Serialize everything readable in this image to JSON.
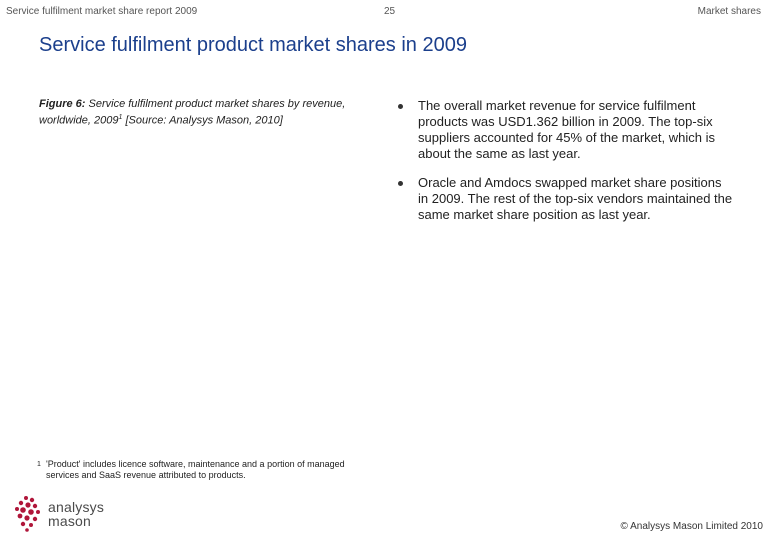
{
  "header": {
    "left": "Service fulfilment market share report 2009",
    "page_number": "25",
    "right": "Market shares"
  },
  "title": "Service fulfilment product market shares in 2009",
  "figure": {
    "label": "Figure 6:",
    "caption": " Service fulfilment product market shares by revenue, worldwide, 2009",
    "footnote_ref": "1",
    "source": " [Source: Analysys Mason, 2010]"
  },
  "bullets": [
    "The overall market revenue for service fulfilment products was USD1.362 billion in 2009. The top-six suppliers accounted for 45% of the market, which is about the same as last year.",
    "Oracle and Amdocs swapped market share positions in 2009. The rest of the top-six vendors maintained the same market share position as last year."
  ],
  "footnote": {
    "number": "1",
    "text": "'Product' includes licence software, maintenance and a portion of managed services and SaaS revenue attributed to products."
  },
  "logo": {
    "line1": "analysys",
    "line2": "mason",
    "accent_color": "#b0163a"
  },
  "copyright": "© Analysys Mason Limited 2010",
  "colors": {
    "title": "#1b3f8c",
    "text": "#222222"
  }
}
